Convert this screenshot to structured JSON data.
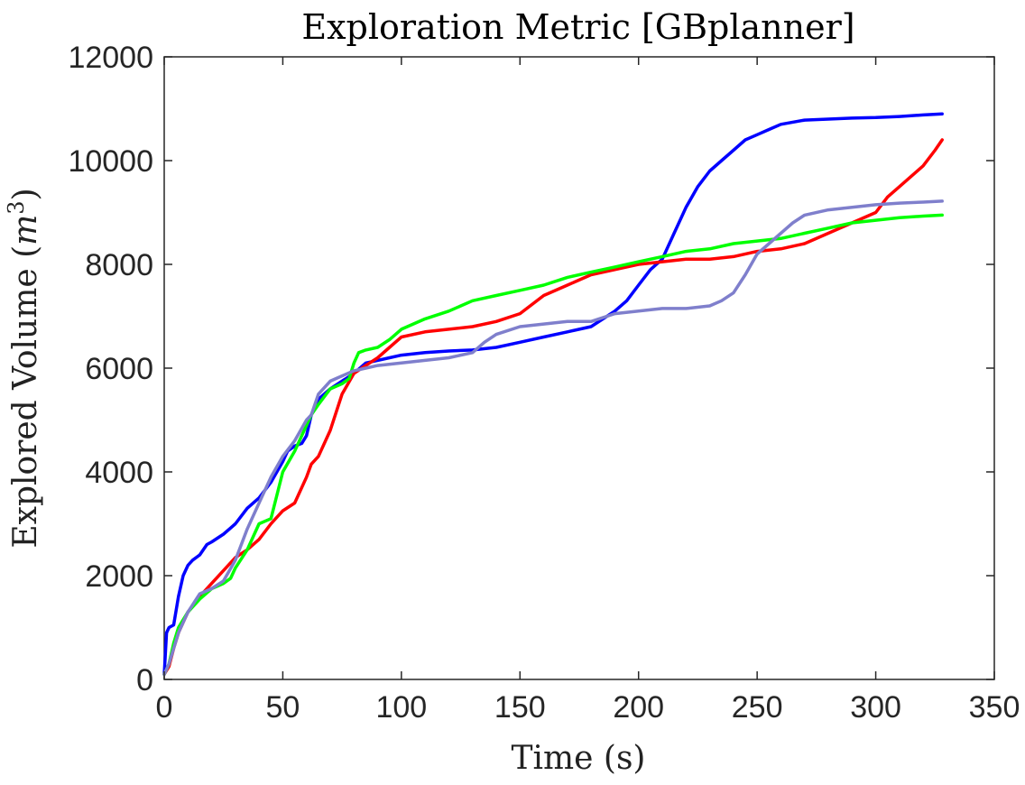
{
  "chart_data": {
    "type": "line",
    "title": "Exploration Metric [GBplanner]",
    "xlabel": "Time (s)",
    "ylabel_prefix": "Explored Volume (",
    "ylabel_var": "m",
    "ylabel_sup": "3",
    "ylabel_suffix": ")",
    "xlim": [
      0,
      350
    ],
    "ylim": [
      0,
      12000
    ],
    "xticks": [
      0,
      50,
      100,
      150,
      200,
      250,
      300,
      350
    ],
    "yticks": [
      0,
      2000,
      4000,
      6000,
      8000,
      10000,
      12000
    ],
    "xtick_labels": [
      "0",
      "50",
      "100",
      "150",
      "200",
      "250",
      "300",
      "350"
    ],
    "ytick_labels": [
      "0",
      "2000",
      "4000",
      "6000",
      "8000",
      "10000",
      "12000"
    ],
    "grid": false,
    "series": [
      {
        "color": "#0000ff",
        "x": [
          0,
          1,
          2,
          4,
          6,
          8,
          10,
          12,
          15,
          18,
          20,
          25,
          30,
          35,
          40,
          45,
          50,
          52,
          55,
          58,
          60,
          62,
          65,
          70,
          75,
          80,
          85,
          90,
          95,
          100,
          110,
          120,
          130,
          140,
          150,
          160,
          170,
          180,
          185,
          190,
          195,
          200,
          205,
          210,
          215,
          220,
          225,
          230,
          235,
          240,
          245,
          250,
          255,
          260,
          270,
          280,
          290,
          300,
          310,
          320,
          328
        ],
        "y": [
          100,
          900,
          1000,
          1050,
          1600,
          2000,
          2200,
          2300,
          2400,
          2600,
          2650,
          2800,
          3000,
          3300,
          3500,
          3800,
          4200,
          4400,
          4500,
          4550,
          4700,
          5100,
          5400,
          5600,
          5750,
          5900,
          6100,
          6150,
          6200,
          6250,
          6300,
          6330,
          6350,
          6400,
          6500,
          6600,
          6700,
          6800,
          6950,
          7100,
          7300,
          7600,
          7900,
          8100,
          8600,
          9100,
          9500,
          9800,
          10000,
          10200,
          10400,
          10500,
          10600,
          10700,
          10780,
          10800,
          10820,
          10830,
          10850,
          10880,
          10900
        ]
      },
      {
        "color": "#ff0000",
        "x": [
          0,
          2,
          4,
          6,
          8,
          10,
          15,
          20,
          25,
          30,
          35,
          40,
          45,
          50,
          55,
          60,
          62,
          65,
          70,
          75,
          80,
          85,
          90,
          95,
          100,
          110,
          120,
          130,
          140,
          150,
          160,
          170,
          180,
          190,
          200,
          210,
          220,
          230,
          240,
          250,
          260,
          270,
          280,
          290,
          300,
          305,
          310,
          315,
          320,
          325,
          328
        ],
        "y": [
          100,
          250,
          600,
          900,
          1100,
          1300,
          1600,
          1850,
          2100,
          2350,
          2500,
          2700,
          3000,
          3250,
          3400,
          3900,
          4150,
          4300,
          4800,
          5500,
          5900,
          6050,
          6200,
          6400,
          6600,
          6700,
          6750,
          6800,
          6900,
          7050,
          7400,
          7600,
          7800,
          7900,
          8000,
          8050,
          8100,
          8100,
          8150,
          8250,
          8300,
          8400,
          8600,
          8800,
          9000,
          9300,
          9500,
          9700,
          9900,
          10200,
          10400
        ]
      },
      {
        "color": "#00ff00",
        "x": [
          0,
          2,
          4,
          6,
          8,
          10,
          15,
          20,
          25,
          28,
          30,
          35,
          40,
          45,
          50,
          55,
          60,
          62,
          65,
          70,
          75,
          78,
          80,
          82,
          85,
          90,
          95,
          100,
          110,
          120,
          130,
          140,
          150,
          160,
          170,
          180,
          190,
          200,
          210,
          220,
          230,
          240,
          250,
          260,
          270,
          280,
          290,
          300,
          310,
          320,
          328
        ],
        "y": [
          100,
          300,
          700,
          1000,
          1150,
          1300,
          1550,
          1750,
          1850,
          1950,
          2150,
          2500,
          3000,
          3100,
          4000,
          4400,
          4900,
          5100,
          5300,
          5600,
          5700,
          5800,
          6100,
          6300,
          6350,
          6400,
          6550,
          6750,
          6950,
          7100,
          7300,
          7400,
          7500,
          7600,
          7750,
          7850,
          7950,
          8050,
          8150,
          8250,
          8300,
          8400,
          8450,
          8500,
          8600,
          8700,
          8800,
          8850,
          8900,
          8930,
          8950
        ]
      },
      {
        "color": "#7f7fcc",
        "x": [
          0,
          2,
          4,
          6,
          8,
          10,
          15,
          20,
          25,
          30,
          35,
          40,
          45,
          50,
          55,
          60,
          62,
          65,
          70,
          75,
          80,
          85,
          90,
          100,
          110,
          120,
          130,
          135,
          140,
          150,
          160,
          170,
          180,
          190,
          200,
          210,
          220,
          230,
          235,
          240,
          245,
          250,
          255,
          260,
          265,
          270,
          280,
          290,
          300,
          310,
          320,
          328
        ],
        "y": [
          100,
          300,
          600,
          900,
          1100,
          1300,
          1650,
          1750,
          1900,
          2300,
          2900,
          3400,
          3900,
          4300,
          4600,
          5000,
          5100,
          5500,
          5750,
          5850,
          5950,
          6000,
          6050,
          6100,
          6150,
          6200,
          6300,
          6500,
          6650,
          6800,
          6850,
          6900,
          6900,
          7050,
          7100,
          7150,
          7150,
          7200,
          7300,
          7450,
          7800,
          8200,
          8400,
          8600,
          8800,
          8950,
          9050,
          9100,
          9150,
          9180,
          9200,
          9220
        ]
      }
    ]
  }
}
